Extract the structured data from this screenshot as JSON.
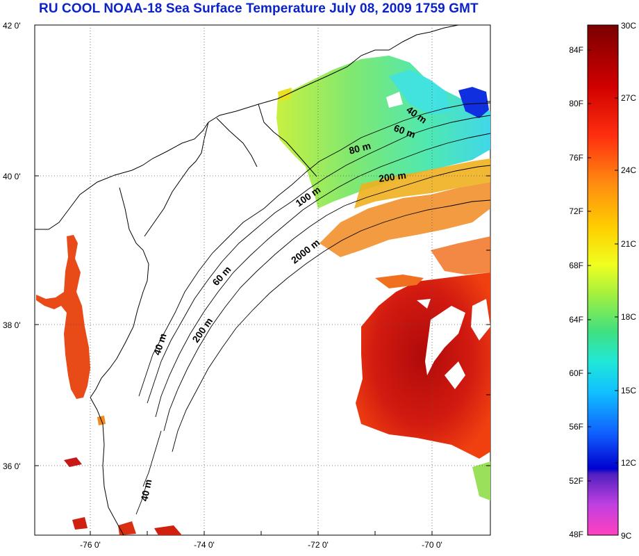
{
  "title": "RU COOL  NOAA-18 Sea Surface Temperature July 08, 2009 1759 GMT",
  "lat_labels": [
    "42 0'",
    "40 0'",
    "38 0'",
    "36 0'"
  ],
  "lon_labels": [
    "-76 0'",
    "-74 0'",
    "-72 0'",
    "-70 0'"
  ],
  "contours": {
    "c1": "40 m",
    "c2": "60 m",
    "c3": "80 m",
    "c4": "200 m",
    "c5": "100 m",
    "c6": "2000 m",
    "c7": "60 m",
    "c8": "40 m",
    "c9": "200 m",
    "c10": "40 m"
  },
  "colorbar": {
    "fahrenheit": [
      "84F",
      "80F",
      "76F",
      "72F",
      "68F",
      "64F",
      "60F",
      "56F",
      "52F",
      "48F"
    ],
    "celsius": [
      "30C",
      "27C",
      "24C",
      "21C",
      "18C",
      "15C",
      "12C",
      "9C"
    ]
  },
  "colors": {
    "warm": "#d81a10",
    "hot": "#a00808",
    "orange": "#f07818",
    "green": "#7ee070",
    "cyan": "#40e0d0",
    "blue": "#1030e0",
    "title": "#0b22c8"
  }
}
